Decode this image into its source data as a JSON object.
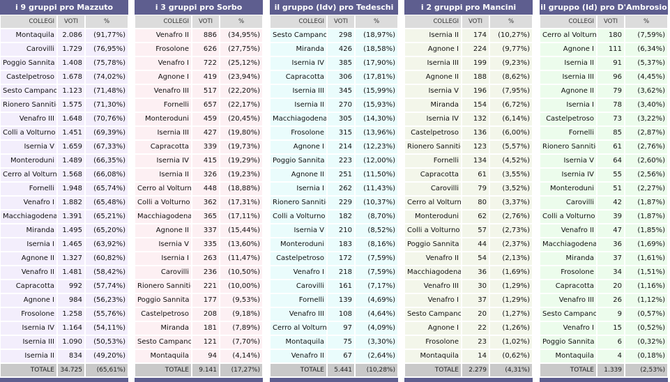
{
  "columns": {
    "collegi": "COLLEGI",
    "voti": "VOTI",
    "pct": "%"
  },
  "total_label": "TOTALE",
  "panels": [
    {
      "title": "i 9 gruppi pro Mazzuto",
      "tint": "#f3eefc",
      "total_voti": "34.725",
      "total_pct": "(65,61%)",
      "rows": [
        [
          "Montaquila",
          "2.086",
          "(91,77%)"
        ],
        [
          "Carovilli",
          "1.729",
          "(76,95%)"
        ],
        [
          "Poggio Sannita",
          "1.408",
          "(75,78%)"
        ],
        [
          "Castelpetroso",
          "1.678",
          "(74,02%)"
        ],
        [
          "Sesto Campano",
          "1.123",
          "(71,48%)"
        ],
        [
          "Rionero Sannitico",
          "1.575",
          "(71,30%)"
        ],
        [
          "Venafro III",
          "1.648",
          "(70,76%)"
        ],
        [
          "Colli a Volturno",
          "1.451",
          "(69,39%)"
        ],
        [
          "Isernia V",
          "1.659",
          "(67,33%)"
        ],
        [
          "Monteroduni",
          "1.489",
          "(66,35%)"
        ],
        [
          "Cerro al Volturno",
          "1.568",
          "(66,08%)"
        ],
        [
          "Fornelli",
          "1.948",
          "(65,74%)"
        ],
        [
          "Venafro I",
          "1.882",
          "(65,48%)"
        ],
        [
          "Macchiagodena",
          "1.391",
          "(65,21%)"
        ],
        [
          "Miranda",
          "1.495",
          "(65,20%)"
        ],
        [
          "Isernia I",
          "1.465",
          "(63,92%)"
        ],
        [
          "Agnone II",
          "1.327",
          "(60,82%)"
        ],
        [
          "Venafro II",
          "1.481",
          "(58,42%)"
        ],
        [
          "Capracotta",
          "992",
          "(57,74%)"
        ],
        [
          "Agnone I",
          "984",
          "(56,23%)"
        ],
        [
          "Frosolone",
          "1.258",
          "(55,76%)"
        ],
        [
          "Isernia IV",
          "1.164",
          "(54,11%)"
        ],
        [
          "Isernia III",
          "1.090",
          "(50,53%)"
        ],
        [
          "Isernia II",
          "834",
          "(49,20%)"
        ]
      ]
    },
    {
      "title": "i 3 gruppi pro Sorbo",
      "tint": "#fdf0f3",
      "total_voti": "9.141",
      "total_pct": "(17,27%)",
      "rows": [
        [
          "Venafro II",
          "886",
          "(34,95%)"
        ],
        [
          "Frosolone",
          "626",
          "(27,75%)"
        ],
        [
          "Venafro I",
          "722",
          "(25,12%)"
        ],
        [
          "Agnone I",
          "419",
          "(23,94%)"
        ],
        [
          "Venafro III",
          "517",
          "(22,20%)"
        ],
        [
          "Fornelli",
          "657",
          "(22,17%)"
        ],
        [
          "Monteroduni",
          "459",
          "(20,45%)"
        ],
        [
          "Isernia III",
          "427",
          "(19,80%)"
        ],
        [
          "Capracotta",
          "339",
          "(19,73%)"
        ],
        [
          "Isernia IV",
          "415",
          "(19,29%)"
        ],
        [
          "Isernia II",
          "326",
          "(19,23%)"
        ],
        [
          "Cerro al Volturno",
          "448",
          "(18,88%)"
        ],
        [
          "Colli a Volturno",
          "362",
          "(17,31%)"
        ],
        [
          "Macchiagodena",
          "365",
          "(17,11%)"
        ],
        [
          "Agnone II",
          "337",
          "(15,44%)"
        ],
        [
          "Isernia V",
          "335",
          "(13,60%)"
        ],
        [
          "Isernia I",
          "263",
          "(11,47%)"
        ],
        [
          "Carovilli",
          "236",
          "(10,50%)"
        ],
        [
          "Rionero Sannitico",
          "221",
          "(10,00%)"
        ],
        [
          "Poggio Sannita",
          "177",
          "(9,53%)"
        ],
        [
          "Castelpetroso",
          "208",
          "(9,18%)"
        ],
        [
          "Miranda",
          "181",
          "(7,89%)"
        ],
        [
          "Sesto Campano",
          "121",
          "(7,70%)"
        ],
        [
          "Montaquila",
          "94",
          "(4,14%)"
        ]
      ]
    },
    {
      "title": "il gruppo (Idv) pro Tedeschi",
      "tint": "#eafcfc",
      "total_voti": "5.441",
      "total_pct": "(10,28%)",
      "rows": [
        [
          "Sesto Campano",
          "298",
          "(18,97%)"
        ],
        [
          "Miranda",
          "426",
          "(18,58%)"
        ],
        [
          "Isernia IV",
          "385",
          "(17,90%)"
        ],
        [
          "Capracotta",
          "306",
          "(17,81%)"
        ],
        [
          "Isernia III",
          "345",
          "(15,99%)"
        ],
        [
          "Isernia II",
          "270",
          "(15,93%)"
        ],
        [
          "Macchiagodena",
          "305",
          "(14,30%)"
        ],
        [
          "Frosolone",
          "315",
          "(13,96%)"
        ],
        [
          "Agnone I",
          "214",
          "(12,23%)"
        ],
        [
          "Poggio Sannita",
          "223",
          "(12,00%)"
        ],
        [
          "Agnone II",
          "251",
          "(11,50%)"
        ],
        [
          "Isernia I",
          "262",
          "(11,43%)"
        ],
        [
          "Rionero Sannitico",
          "229",
          "(10,37%)"
        ],
        [
          "Colli a Volturno",
          "182",
          "(8,70%)"
        ],
        [
          "Isernia V",
          "210",
          "(8,52%)"
        ],
        [
          "Monteroduni",
          "183",
          "(8,16%)"
        ],
        [
          "Castelpetroso",
          "172",
          "(7,59%)"
        ],
        [
          "Venafro I",
          "218",
          "(7,59%)"
        ],
        [
          "Carovilli",
          "161",
          "(7,17%)"
        ],
        [
          "Fornelli",
          "139",
          "(4,69%)"
        ],
        [
          "Venafro III",
          "108",
          "(4,64%)"
        ],
        [
          "Cerro al Volturno",
          "97",
          "(4,09%)"
        ],
        [
          "Montaquila",
          "75",
          "(3,30%)"
        ],
        [
          "Venafro II",
          "67",
          "(2,64%)"
        ]
      ]
    },
    {
      "title": "i 2 gruppi pro Mancini",
      "tint": "#f3f6ea",
      "total_voti": "2.279",
      "total_pct": "(4,31%)",
      "rows": [
        [
          "Isernia II",
          "174",
          "(10,27%)"
        ],
        [
          "Agnone I",
          "224",
          "(9,77%)"
        ],
        [
          "Isernia III",
          "199",
          "(9,23%)"
        ],
        [
          "Agnone II",
          "188",
          "(8,62%)"
        ],
        [
          "Isernia V",
          "196",
          "(7,95%)"
        ],
        [
          "Miranda",
          "154",
          "(6,72%)"
        ],
        [
          "Isernia IV",
          "132",
          "(6,14%)"
        ],
        [
          "Castelpetroso",
          "136",
          "(6,00%)"
        ],
        [
          "Rionero Sannitico",
          "123",
          "(5,57%)"
        ],
        [
          "Fornelli",
          "134",
          "(4,52%)"
        ],
        [
          "Capracotta",
          "61",
          "(3,55%)"
        ],
        [
          "Carovilli",
          "79",
          "(3,52%)"
        ],
        [
          "Cerro al Volturno",
          "80",
          "(3,37%)"
        ],
        [
          "Monteroduni",
          "62",
          "(2,76%)"
        ],
        [
          "Colli a Volturno",
          "57",
          "(2,73%)"
        ],
        [
          "Poggio Sannita",
          "44",
          "(2,37%)"
        ],
        [
          "Venafro II",
          "54",
          "(2,13%)"
        ],
        [
          "Macchiagodena",
          "36",
          "(1,69%)"
        ],
        [
          "Venafro III",
          "30",
          "(1,29%)"
        ],
        [
          "Venafro I",
          "37",
          "(1,29%)"
        ],
        [
          "Sesto Campano",
          "20",
          "(1,27%)"
        ],
        [
          "Agnone I",
          "22",
          "(1,26%)"
        ],
        [
          "Frosolone",
          "23",
          "(1,02%)"
        ],
        [
          "Montaquila",
          "14",
          "(0,62%)"
        ]
      ]
    },
    {
      "title": "il gruppo (Id) pro D'Ambrosio",
      "tint": "#ecfcec",
      "total_voti": "1.339",
      "total_pct": "(2,53%)",
      "rows": [
        [
          "Cerro al Volturno",
          "180",
          "(7,59%)"
        ],
        [
          "Agnone I",
          "111",
          "(6,34%)"
        ],
        [
          "Isernia II",
          "91",
          "(5,37%)"
        ],
        [
          "Isernia III",
          "96",
          "(4,45%)"
        ],
        [
          "Agnone II",
          "79",
          "(3,62%)"
        ],
        [
          "Isernia I",
          "78",
          "(3,40%)"
        ],
        [
          "Castelpetroso",
          "73",
          "(3,22%)"
        ],
        [
          "Fornelli",
          "85",
          "(2,87%)"
        ],
        [
          "Rionero Sannitico",
          "61",
          "(2,76%)"
        ],
        [
          "Isernia V",
          "64",
          "(2,60%)"
        ],
        [
          "Isernia IV",
          "55",
          "(2,56%)"
        ],
        [
          "Monteroduni",
          "51",
          "(2,27%)"
        ],
        [
          "Carovilli",
          "42",
          "(1,87%)"
        ],
        [
          "Colli a Volturno",
          "39",
          "(1,87%)"
        ],
        [
          "Venafro II",
          "47",
          "(1,85%)"
        ],
        [
          "Macchiagodena",
          "36",
          "(1,69%)"
        ],
        [
          "Miranda",
          "37",
          "(1,61%)"
        ],
        [
          "Frosolone",
          "34",
          "(1,51%)"
        ],
        [
          "Capracotta",
          "20",
          "(1,16%)"
        ],
        [
          "Venafro III",
          "26",
          "(1,12%)"
        ],
        [
          "Sesto Campano",
          "9",
          "(0,57%)"
        ],
        [
          "Venafro I",
          "15",
          "(0,52%)"
        ],
        [
          "Poggio Sannita",
          "6",
          "(0,32%)"
        ],
        [
          "Montaquila",
          "4",
          "(0,18%)"
        ]
      ]
    }
  ]
}
